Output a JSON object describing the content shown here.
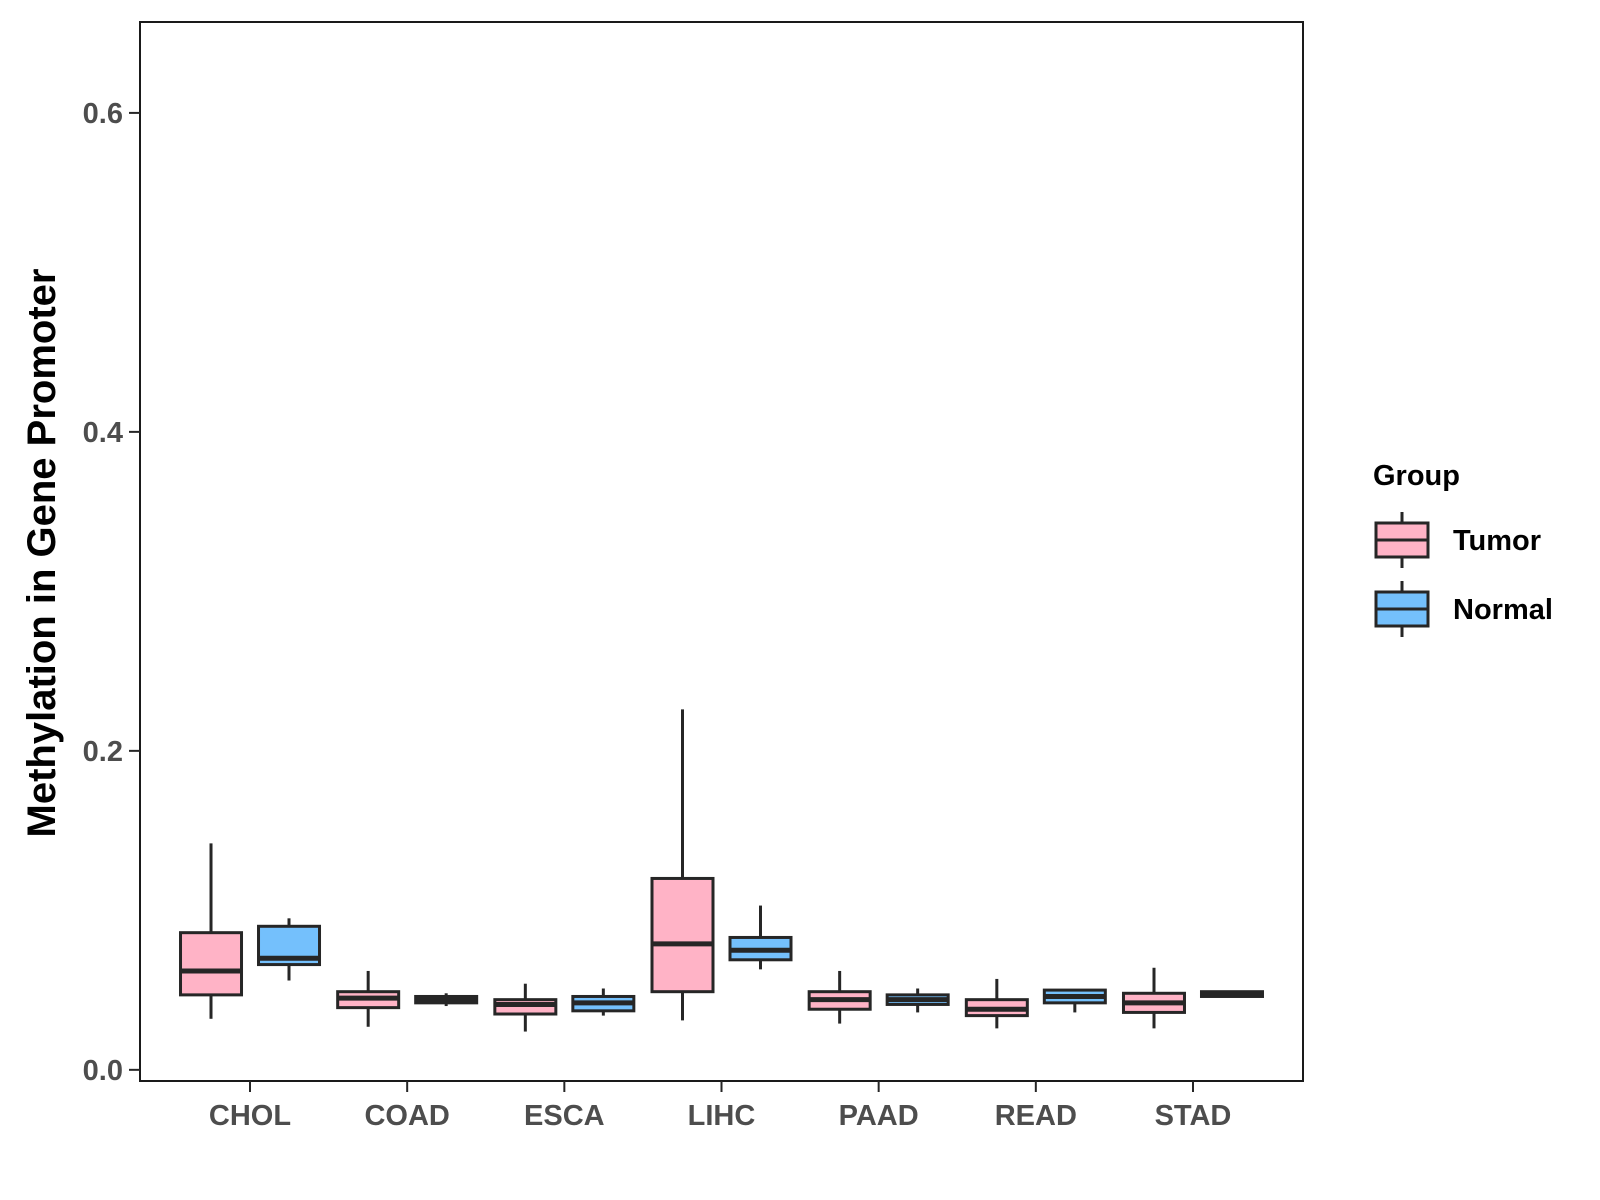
{
  "chart_data": {
    "type": "boxplot",
    "title": "",
    "xlabel": "",
    "ylabel": "Methylation in Gene Promoter",
    "ylim": [
      -0.007,
      0.657
    ],
    "yticks": [
      "0.0",
      "0.2",
      "0.4",
      "0.6"
    ],
    "ytick_values": [
      0.0,
      0.2,
      0.4,
      0.6
    ],
    "categories": [
      "CHOL",
      "COAD",
      "ESCA",
      "LIHC",
      "PAAD",
      "READ",
      "STAD"
    ],
    "legend": {
      "title": "Group",
      "position": "right"
    },
    "series": [
      {
        "name": "Tumor",
        "color": "#ffb3c6",
        "boxes": [
          {
            "min": 0.032,
            "q1": 0.047,
            "median": 0.062,
            "q3": 0.086,
            "max": 0.142
          },
          {
            "min": 0.027,
            "q1": 0.039,
            "median": 0.045,
            "q3": 0.049,
            "max": 0.062
          },
          {
            "min": 0.024,
            "q1": 0.035,
            "median": 0.041,
            "q3": 0.044,
            "max": 0.054
          },
          {
            "min": 0.031,
            "q1": 0.049,
            "median": 0.079,
            "q3": 0.12,
            "max": 0.226
          },
          {
            "min": 0.029,
            "q1": 0.038,
            "median": 0.044,
            "q3": 0.049,
            "max": 0.062
          },
          {
            "min": 0.026,
            "q1": 0.034,
            "median": 0.038,
            "q3": 0.044,
            "max": 0.057
          },
          {
            "min": 0.026,
            "q1": 0.036,
            "median": 0.042,
            "q3": 0.048,
            "max": 0.064
          }
        ]
      },
      {
        "name": "Normal",
        "color": "#74c0fc",
        "boxes": [
          {
            "min": 0.056,
            "q1": 0.066,
            "median": 0.07,
            "q3": 0.09,
            "max": 0.095
          },
          {
            "min": 0.04,
            "q1": 0.042,
            "median": 0.044,
            "q3": 0.046,
            "max": 0.048
          },
          {
            "min": 0.034,
            "q1": 0.037,
            "median": 0.042,
            "q3": 0.046,
            "max": 0.051
          },
          {
            "min": 0.063,
            "q1": 0.069,
            "median": 0.075,
            "q3": 0.083,
            "max": 0.103
          },
          {
            "min": 0.036,
            "q1": 0.041,
            "median": 0.044,
            "q3": 0.047,
            "max": 0.051
          },
          {
            "min": 0.036,
            "q1": 0.042,
            "median": 0.046,
            "q3": 0.05,
            "max": 0.05
          },
          {
            "min": 0.046,
            "q1": 0.046,
            "median": 0.048,
            "q3": 0.049,
            "max": 0.049
          }
        ]
      }
    ]
  }
}
